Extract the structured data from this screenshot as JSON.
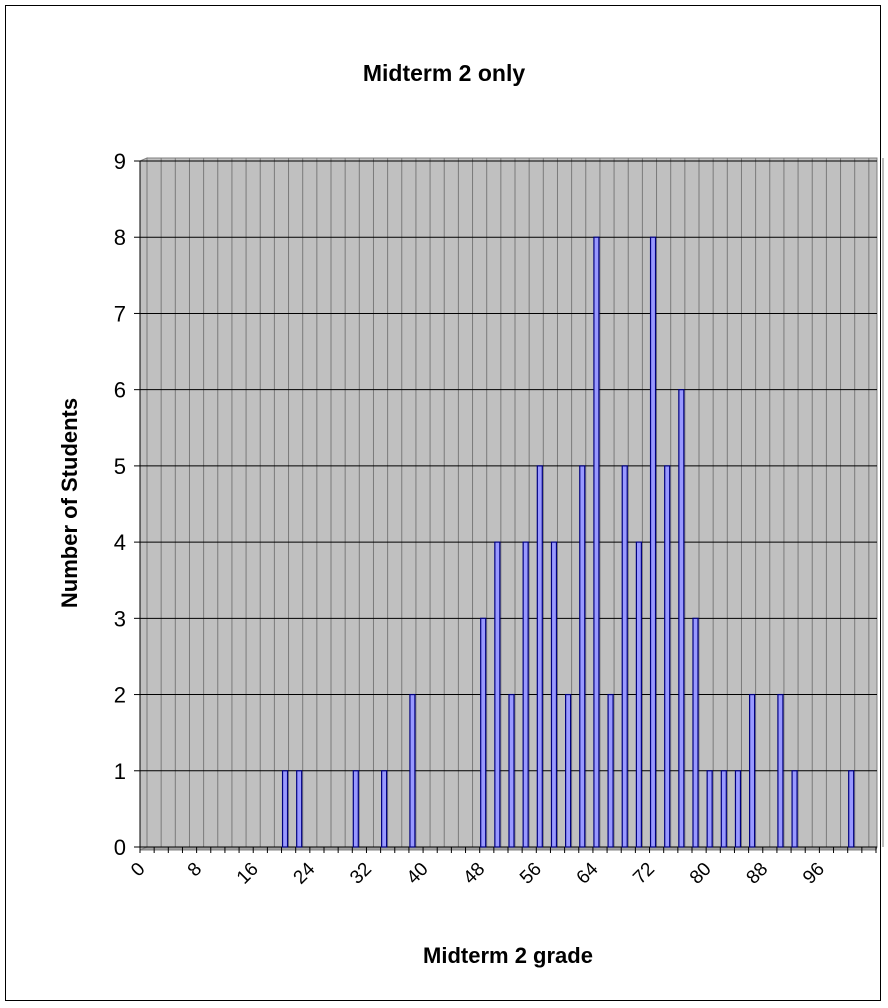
{
  "chart_data": {
    "type": "bar",
    "title": "Midterm 2 only",
    "xlabel": "Midterm 2 grade",
    "ylabel": "Number of Students",
    "ylim": [
      0,
      9
    ],
    "yticks": [
      "0",
      "1",
      "2",
      "3",
      "4",
      "5",
      "6",
      "7",
      "8",
      "9"
    ],
    "xticks": [
      "0",
      "8",
      "16",
      "24",
      "32",
      "40",
      "48",
      "56",
      "64",
      "72",
      "80",
      "88",
      "96"
    ],
    "xlim": [
      0,
      104
    ],
    "bin_width": 2,
    "grid": true,
    "legend": "none",
    "bars": [
      {
        "x": 20,
        "y": 1
      },
      {
        "x": 22,
        "y": 1
      },
      {
        "x": 30,
        "y": 1
      },
      {
        "x": 34,
        "y": 1
      },
      {
        "x": 38,
        "y": 2
      },
      {
        "x": 48,
        "y": 3
      },
      {
        "x": 50,
        "y": 4
      },
      {
        "x": 52,
        "y": 2
      },
      {
        "x": 54,
        "y": 4
      },
      {
        "x": 56,
        "y": 5
      },
      {
        "x": 58,
        "y": 4
      },
      {
        "x": 60,
        "y": 2
      },
      {
        "x": 62,
        "y": 5
      },
      {
        "x": 64,
        "y": 8
      },
      {
        "x": 66,
        "y": 2
      },
      {
        "x": 68,
        "y": 5
      },
      {
        "x": 70,
        "y": 4
      },
      {
        "x": 72,
        "y": 8
      },
      {
        "x": 74,
        "y": 5
      },
      {
        "x": 76,
        "y": 6
      },
      {
        "x": 78,
        "y": 3
      },
      {
        "x": 80,
        "y": 1
      },
      {
        "x": 82,
        "y": 1
      },
      {
        "x": 84,
        "y": 1
      },
      {
        "x": 86,
        "y": 2
      },
      {
        "x": 90,
        "y": 2
      },
      {
        "x": 92,
        "y": 1
      },
      {
        "x": 100,
        "y": 1
      }
    ]
  },
  "colors": {
    "plot_background": "#c0c0c0",
    "bar_fill": "#9999ff",
    "bar_border": "#000080",
    "gridline": "#000000"
  }
}
